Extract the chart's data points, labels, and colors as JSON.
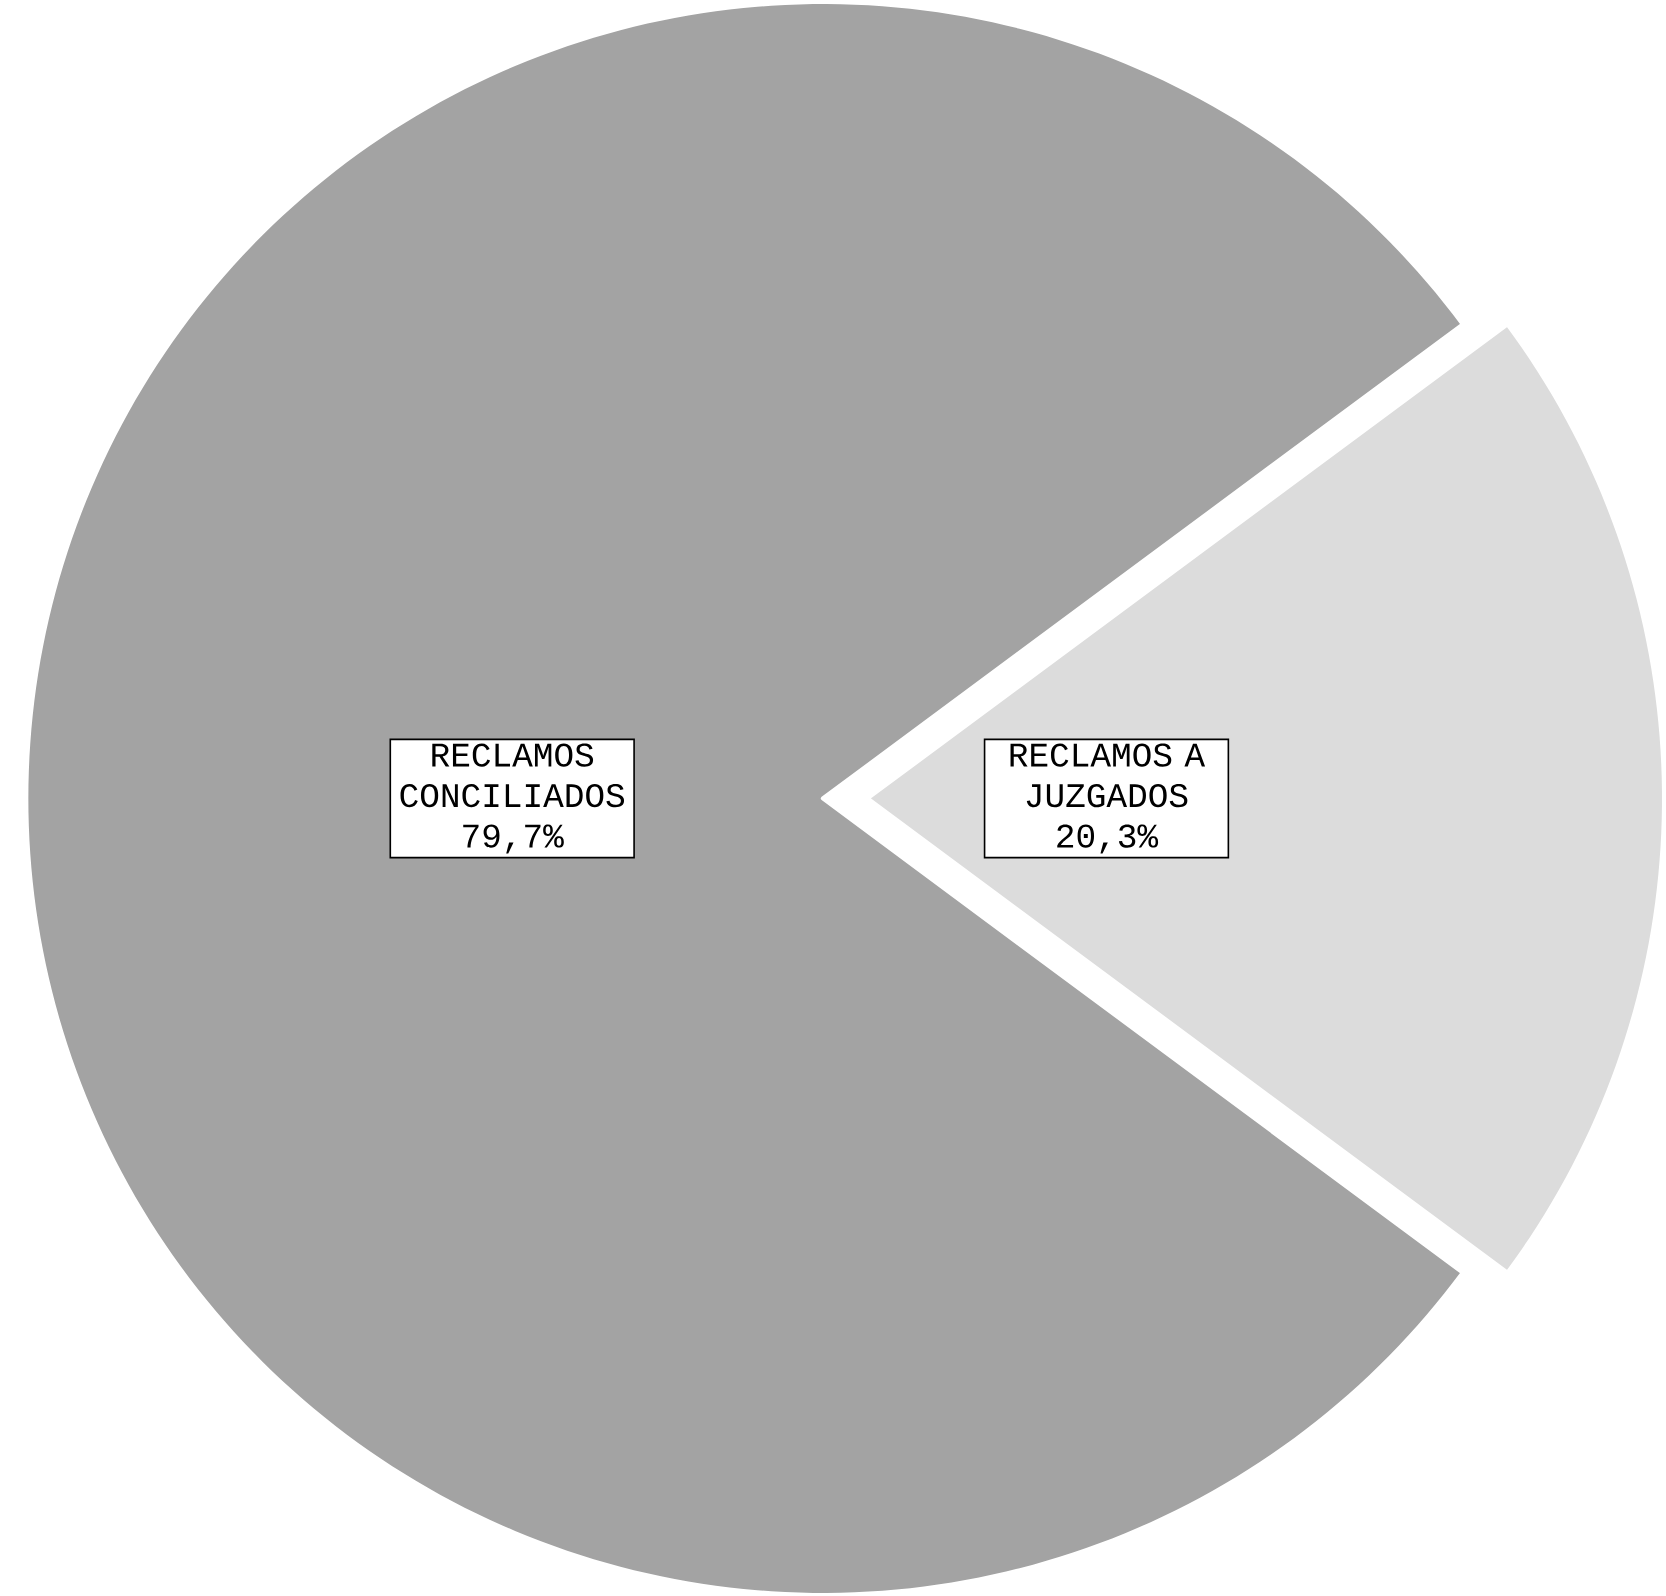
{
  "chart_data": {
    "type": "pie",
    "categories": [
      "RECLAMOS CONCILIADOS",
      "RECLAMOS A JUZGADOS"
    ],
    "values": [
      79.7,
      20.3
    ],
    "value_labels": [
      "79,7%",
      "20,3%"
    ],
    "colors": [
      "#a3a3a3",
      "#dcdcdc"
    ]
  }
}
